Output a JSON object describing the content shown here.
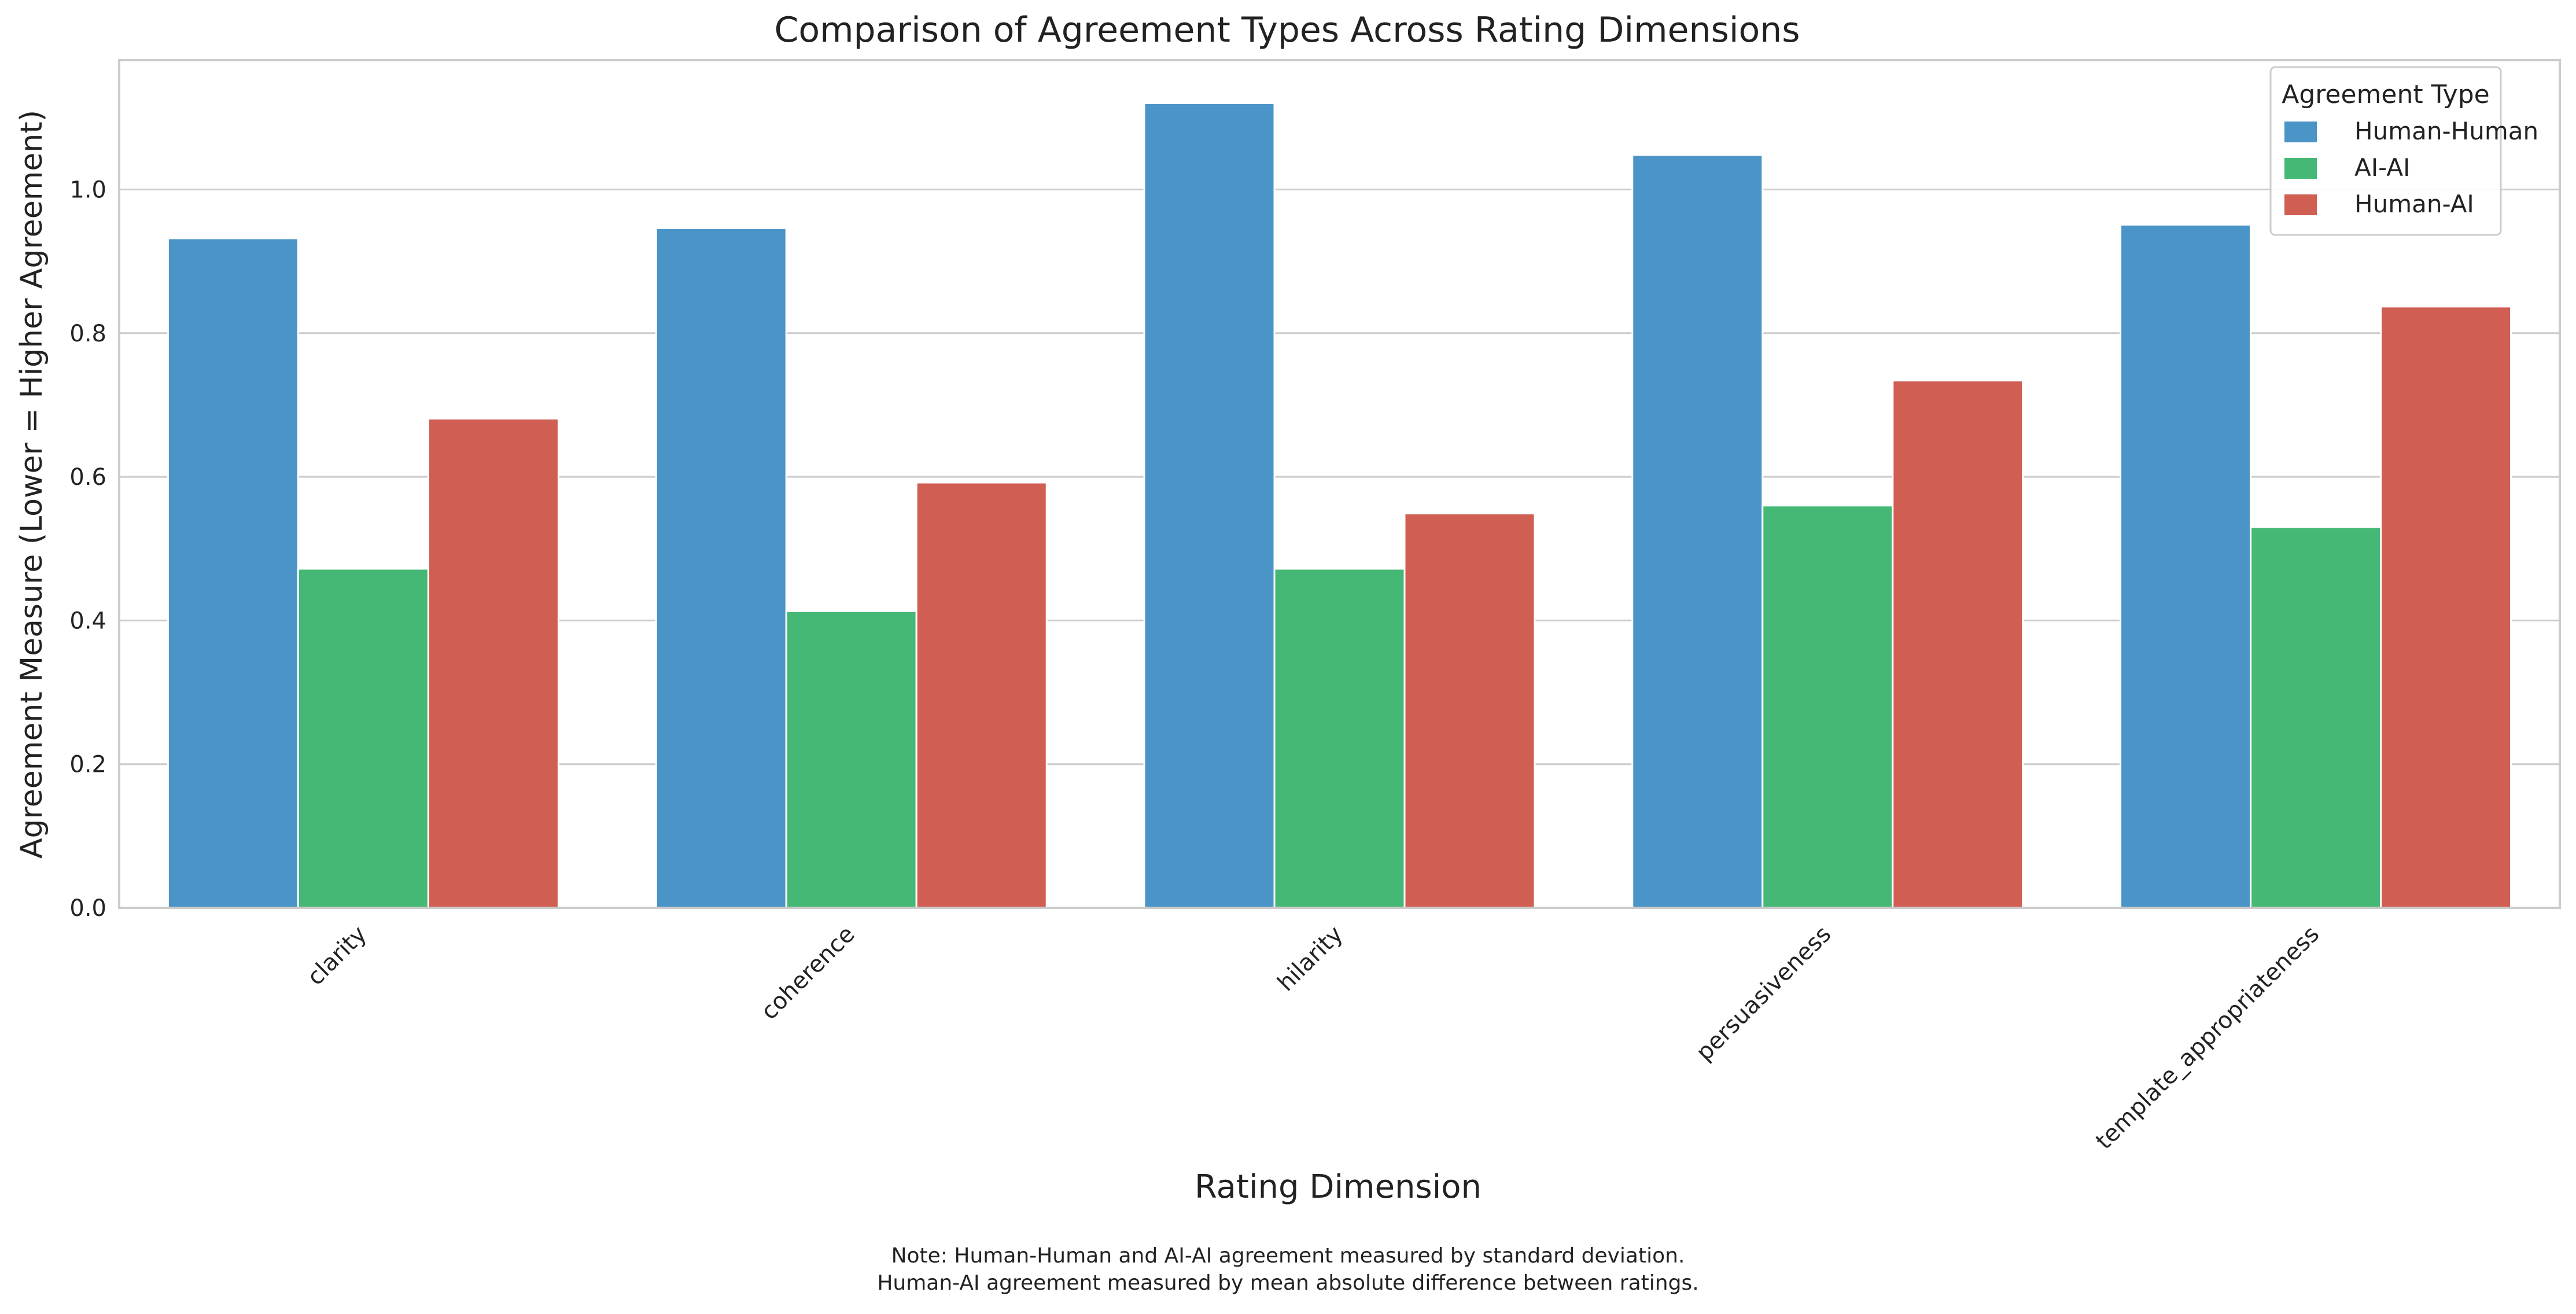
{
  "chart_data": {
    "type": "bar",
    "title": "Comparison of Agreement Types Across Rating Dimensions",
    "xlabel": "Rating Dimension",
    "ylabel": "Agreement Measure (Lower = Higher Agreement)",
    "ylim": [
      0,
      1.18
    ],
    "yticks": [
      "0.0",
      "0.2",
      "0.4",
      "0.6",
      "0.8",
      "1.0"
    ],
    "grid": true,
    "legend_title": "Agreement Type",
    "legend_position": "top-right",
    "categories": [
      "clarity",
      "coherence",
      "hilarity",
      "persuasiveness",
      "template_appropriateness"
    ],
    "series": [
      {
        "name": "Human-Human",
        "color": "#4a94c7",
        "values": [
          0.932,
          0.946,
          1.12,
          1.048,
          0.951
        ]
      },
      {
        "name": "AI-AI",
        "color": "#44b874",
        "values": [
          0.472,
          0.413,
          0.472,
          0.56,
          0.53
        ]
      },
      {
        "name": "Human-AI",
        "color": "#d05e52",
        "values": [
          0.681,
          0.592,
          0.549,
          0.734,
          0.837
        ]
      }
    ]
  },
  "note": {
    "line1": "Note: Human-Human and AI-AI agreement measured by standard deviation.",
    "line2": "Human-AI agreement measured by mean absolute difference between ratings."
  }
}
